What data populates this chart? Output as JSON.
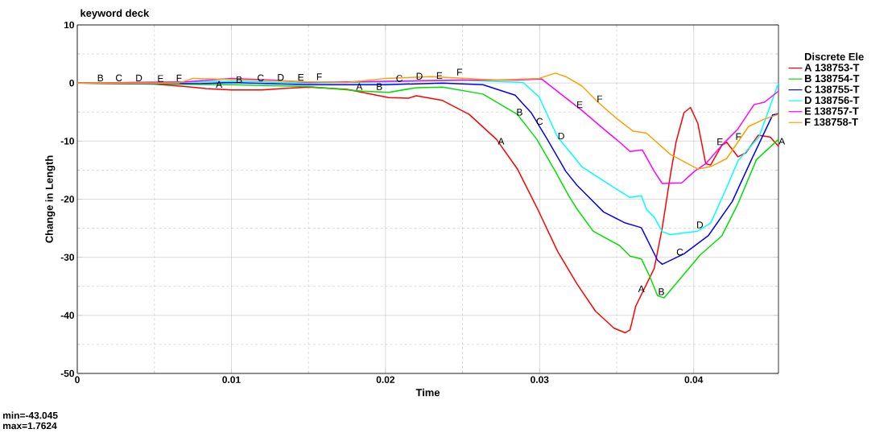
{
  "chart_data": {
    "type": "line",
    "title": "keyword deck",
    "xlabel": "Time",
    "ylabel": "Change in Length",
    "legend_title": "Discrete Ele",
    "legend": "right",
    "grid": true,
    "line_style": "solid",
    "xlim": [
      0,
      0.0455
    ],
    "ylim": [
      -50,
      10
    ],
    "xticks": [
      0,
      0.01,
      0.02,
      0.03,
      0.04
    ],
    "yticks": [
      -50,
      -40,
      -30,
      -20,
      -10,
      0,
      10
    ],
    "series": [
      {
        "name": "A 138753-T",
        "color": "#ff0000",
        "x": [
          0,
          0.005,
          0.007,
          0.0085,
          0.01,
          0.012,
          0.0135,
          0.015,
          0.0175,
          0.0202,
          0.0215,
          0.022,
          0.0237,
          0.02543,
          0.0272,
          0.02856,
          0.02987,
          0.03117,
          0.03243,
          0.03363,
          0.03483,
          0.03556,
          0.03587,
          0.03624,
          0.03744,
          0.03796,
          0.03849,
          0.03885,
          0.03937,
          0.03979,
          0.04026,
          0.04078,
          0.0411,
          0.04183,
          0.04214,
          0.04287,
          0.04339,
          0.04418,
          0.04496,
          0.0455
        ],
        "values": [
          0,
          -0.2,
          -0.6,
          -1.0,
          -1.2,
          -1.2,
          -0.9,
          -0.7,
          -1.1,
          -2.5,
          -2.6,
          -2.2,
          -3,
          -5.4,
          -9.7,
          -14.8,
          -21.7,
          -29,
          -34.6,
          -39.3,
          -42.2,
          -43.0,
          -42.5,
          -38.4,
          -31.9,
          -24.9,
          -15.8,
          -10.2,
          -5.1,
          -4.2,
          -6.9,
          -13.9,
          -14.1,
          -10.7,
          -10.2,
          -12.7,
          -12.0,
          -9.0,
          -9.3,
          -10.9
        ]
      },
      {
        "name": "B 138754-T",
        "color": "#00e000",
        "x": [
          0,
          0.006,
          0.01,
          0.015,
          0.0185,
          0.0202,
          0.022,
          0.02371,
          0.02632,
          0.02856,
          0.02982,
          0.03102,
          0.03191,
          0.03243,
          0.03347,
          0.0352,
          0.03587,
          0.03661,
          0.03713,
          0.03765,
          0.03807,
          0.04042,
          0.04183,
          0.04287,
          0.04407,
          0.0455
        ],
        "values": [
          0,
          -0.2,
          -0.3,
          -0.6,
          -1.4,
          -1.6,
          -0.8,
          -0.7,
          -1.9,
          -5.4,
          -9.7,
          -15.2,
          -19.5,
          -21.7,
          -25.5,
          -28,
          -29.8,
          -30.3,
          -33.2,
          -36.6,
          -37,
          -29.6,
          -26.3,
          -20.8,
          -13.2,
          -9.7
        ]
      },
      {
        "name": "C 138755-T",
        "color": "#0000ff",
        "x": [
          0,
          0.008,
          0.01,
          0.015,
          0.02,
          0.0237,
          0.02632,
          0.02841,
          0.02945,
          0.0305,
          0.0317,
          0.03243,
          0.03415,
          0.03556,
          0.0366,
          0.03765,
          0.03796,
          0.03937,
          0.04094,
          0.0425,
          0.04371,
          0.04512,
          0.0455
        ],
        "values": [
          0,
          -0.1,
          0.1,
          -0.3,
          -0.3,
          0,
          -0.3,
          -2.1,
          -5.1,
          -9.7,
          -15.2,
          -17.6,
          -22.2,
          -24.1,
          -24.9,
          -30.5,
          -31.2,
          -29.4,
          -26.3,
          -20.4,
          -13.4,
          -5.5,
          -5.3
        ]
      },
      {
        "name": "D 138756-T",
        "color": "#00ffff",
        "x": [
          0,
          0.008,
          0.01,
          0.015,
          0.02,
          0.025,
          0.02893,
          0.02997,
          0.03117,
          0.03274,
          0.03483,
          0.03587,
          0.03661,
          0.03692,
          0.03744,
          0.03796,
          0.03849,
          0.04026,
          0.0411,
          0.04214,
          0.04287,
          0.04423,
          0.0455
        ],
        "values": [
          0,
          0.2,
          0.3,
          0,
          0.2,
          0.5,
          0.1,
          -2.4,
          -9.3,
          -14.4,
          -18,
          -19.7,
          -19.4,
          -21.7,
          -23.1,
          -25.6,
          -26.1,
          -25.5,
          -24.1,
          -18,
          -13.4,
          -9.3,
          0
        ]
      },
      {
        "name": "E 138757-T",
        "color": "#ff00ff",
        "x": [
          0,
          0.007,
          0.01,
          0.0127,
          0.015,
          0.02,
          0.025,
          0.02856,
          0.03013,
          0.03138,
          0.03274,
          0.03415,
          0.0352,
          0.03587,
          0.03666,
          0.03744,
          0.03796,
          0.03922,
          0.04005,
          0.04078,
          0.04183,
          0.04287,
          0.04392,
          0.04459,
          0.0455
        ],
        "values": [
          0,
          0.2,
          0.8,
          0.5,
          0.1,
          0.3,
          0.5,
          0.5,
          0.7,
          -1.9,
          -4.7,
          -7.9,
          -10.2,
          -11.8,
          -11.5,
          -15.2,
          -17.3,
          -17.2,
          -15.2,
          -13.9,
          -10.7,
          -7.9,
          -3.7,
          -3.3,
          -1.4
        ]
      },
      {
        "name": "F 138758-T",
        "color": "#ffa000",
        "x": [
          0,
          0.0066,
          0.0075,
          0.01,
          0.015,
          0.0175,
          0.02,
          0.023,
          0.02721,
          0.02997,
          0.03102,
          0.0317,
          0.03274,
          0.03379,
          0.03504,
          0.03608,
          0.03692,
          0.03849,
          0.04026,
          0.0411,
          0.04214,
          0.04355,
          0.04459,
          0.0455
        ],
        "values": [
          0,
          0,
          0.8,
          0.6,
          0.2,
          0.1,
          0.8,
          1.1,
          0.5,
          0.8,
          1.7,
          1.1,
          -0.5,
          -3.3,
          -6.2,
          -8.3,
          -8.6,
          -12.3,
          -14.8,
          -14.4,
          -13,
          -7.5,
          -6.2,
          -5.4
        ]
      }
    ],
    "annotations": [
      "min=-43.045",
      "max=1.7624",
      {
        "text": "B",
        "x": 0.0015,
        "y": 0
      },
      {
        "text": "C",
        "x": 0.0027,
        "y": 0
      },
      {
        "text": "D",
        "x": 0.004,
        "y": 0
      },
      {
        "text": "E",
        "x": 0.0054,
        "y": -0.1
      },
      {
        "text": "F",
        "x": 0.0066,
        "y": 0
      },
      {
        "text": "A",
        "x": 0.0092,
        "y": -1.1
      },
      {
        "text": "B",
        "x": 0.0105,
        "y": -0.3
      },
      {
        "text": "C",
        "x": 0.0119,
        "y": 0
      },
      {
        "text": "D",
        "x": 0.0132,
        "y": 0.1
      },
      {
        "text": "E",
        "x": 0.0145,
        "y": 0.1
      },
      {
        "text": "F",
        "x": 0.0157,
        "y": 0.2
      },
      {
        "text": "A",
        "x": 0.0183,
        "y": -1.5
      },
      {
        "text": "B",
        "x": 0.0196,
        "y": -1.5
      },
      {
        "text": "C",
        "x": 0.0209,
        "y": -0.1
      },
      {
        "text": "D",
        "x": 0.0222,
        "y": 0.3
      },
      {
        "text": "E",
        "x": 0.0235,
        "y": 0.4
      },
      {
        "text": "F",
        "x": 0.0248,
        "y": 1.0
      },
      {
        "text": "A",
        "x": 0.0275,
        "y": -10.9
      },
      {
        "text": "B",
        "x": 0.0287,
        "y": -5.9
      },
      {
        "text": "C",
        "x": 0.03,
        "y": -7.5
      },
      {
        "text": "D",
        "x": 0.0314,
        "y": -10
      },
      {
        "text": "E",
        "x": 0.0326,
        "y": -4.6
      },
      {
        "text": "F",
        "x": 0.0339,
        "y": -3.6
      },
      {
        "text": "A",
        "x": 0.0366,
        "y": -36.3
      },
      {
        "text": "B",
        "x": 0.0379,
        "y": -36.8
      },
      {
        "text": "C",
        "x": 0.0391,
        "y": -30
      },
      {
        "text": "D",
        "x": 0.0404,
        "y": -25.3
      },
      {
        "text": "E",
        "x": 0.0417,
        "y": -11
      },
      {
        "text": "F",
        "x": 0.0429,
        "y": -10.1
      },
      {
        "text": "A",
        "x": 0.0455,
        "y": -10.9
      }
    ]
  }
}
